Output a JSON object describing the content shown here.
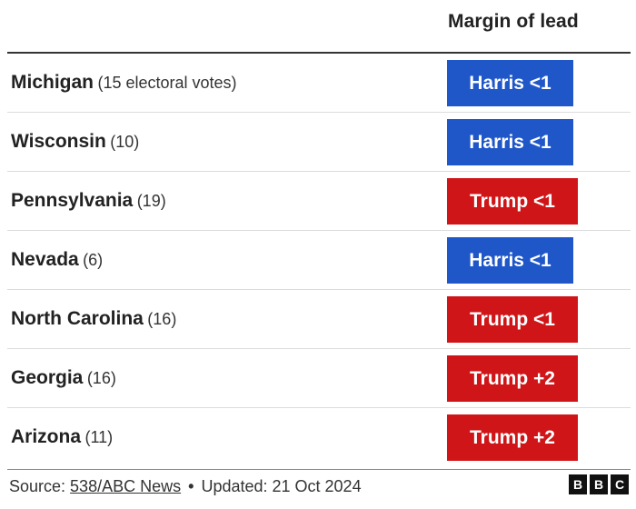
{
  "chart_data": {
    "type": "table",
    "column_header": "Margin of lead",
    "rows": [
      {
        "state": "Michigan",
        "votes": "(15 electoral votes)",
        "leader": "Harris",
        "margin": "Harris <1"
      },
      {
        "state": "Wisconsin",
        "votes": "(10)",
        "leader": "Harris",
        "margin": "Harris <1"
      },
      {
        "state": "Pennsylvania",
        "votes": "(19)",
        "leader": "Trump",
        "margin": "Trump <1"
      },
      {
        "state": "Nevada",
        "votes": "(6)",
        "leader": "Harris",
        "margin": "Harris <1"
      },
      {
        "state": "North Carolina",
        "votes": "(16)",
        "leader": "Trump",
        "margin": "Trump <1"
      },
      {
        "state": "Georgia",
        "votes": "(16)",
        "leader": "Trump",
        "margin": "Trump +2"
      },
      {
        "state": "Arizona",
        "votes": "(11)",
        "leader": "Trump",
        "margin": "Trump +2"
      }
    ],
    "colors": {
      "Harris": "#1f57c8",
      "Trump": "#cf1518"
    }
  },
  "footer": {
    "source_prefix": "Source: ",
    "source_link": "538/ABC News",
    "separator": "•",
    "updated": "Updated: 21 Oct 2024"
  },
  "logo": {
    "letters": [
      "B",
      "B",
      "C"
    ]
  }
}
